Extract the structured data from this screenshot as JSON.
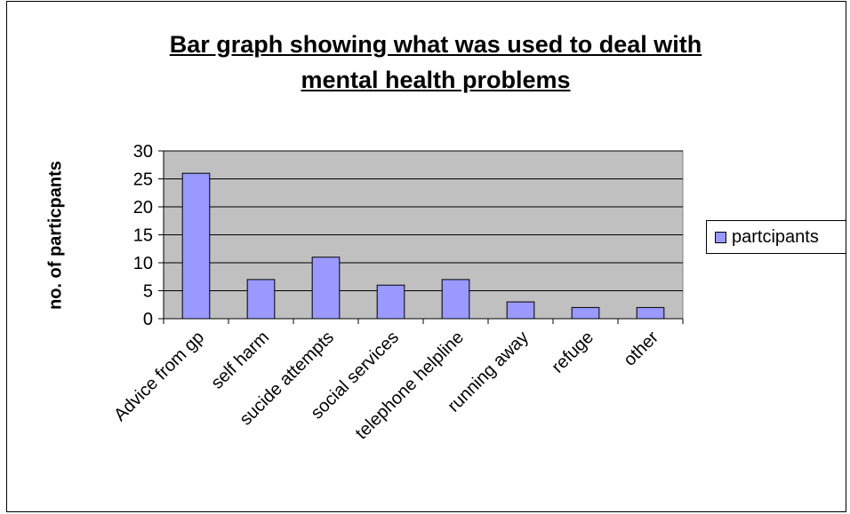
{
  "chart_data": {
    "type": "bar",
    "title_lines": [
      "Bar graph showing what was used to deal with",
      "mental health problems"
    ],
    "xlabel": "",
    "ylabel": "no. of particpants",
    "categories": [
      "Advice from gp",
      "self harm",
      "sucide attempts",
      "social services",
      "telephone helpline",
      "running away",
      "refuge",
      "other"
    ],
    "series": [
      {
        "name": "partcipants",
        "values": [
          26,
          7,
          11,
          6,
          7,
          3,
          2,
          2
        ]
      }
    ],
    "ylim": [
      0,
      30
    ],
    "yticks": [
      "0",
      "5",
      "10",
      "15",
      "20",
      "25",
      "30"
    ],
    "grid": true,
    "legend_position": "right",
    "colors": {
      "bar": "#9999ff",
      "plot_bg": "#c0c0c0",
      "grid": "#000000"
    }
  }
}
